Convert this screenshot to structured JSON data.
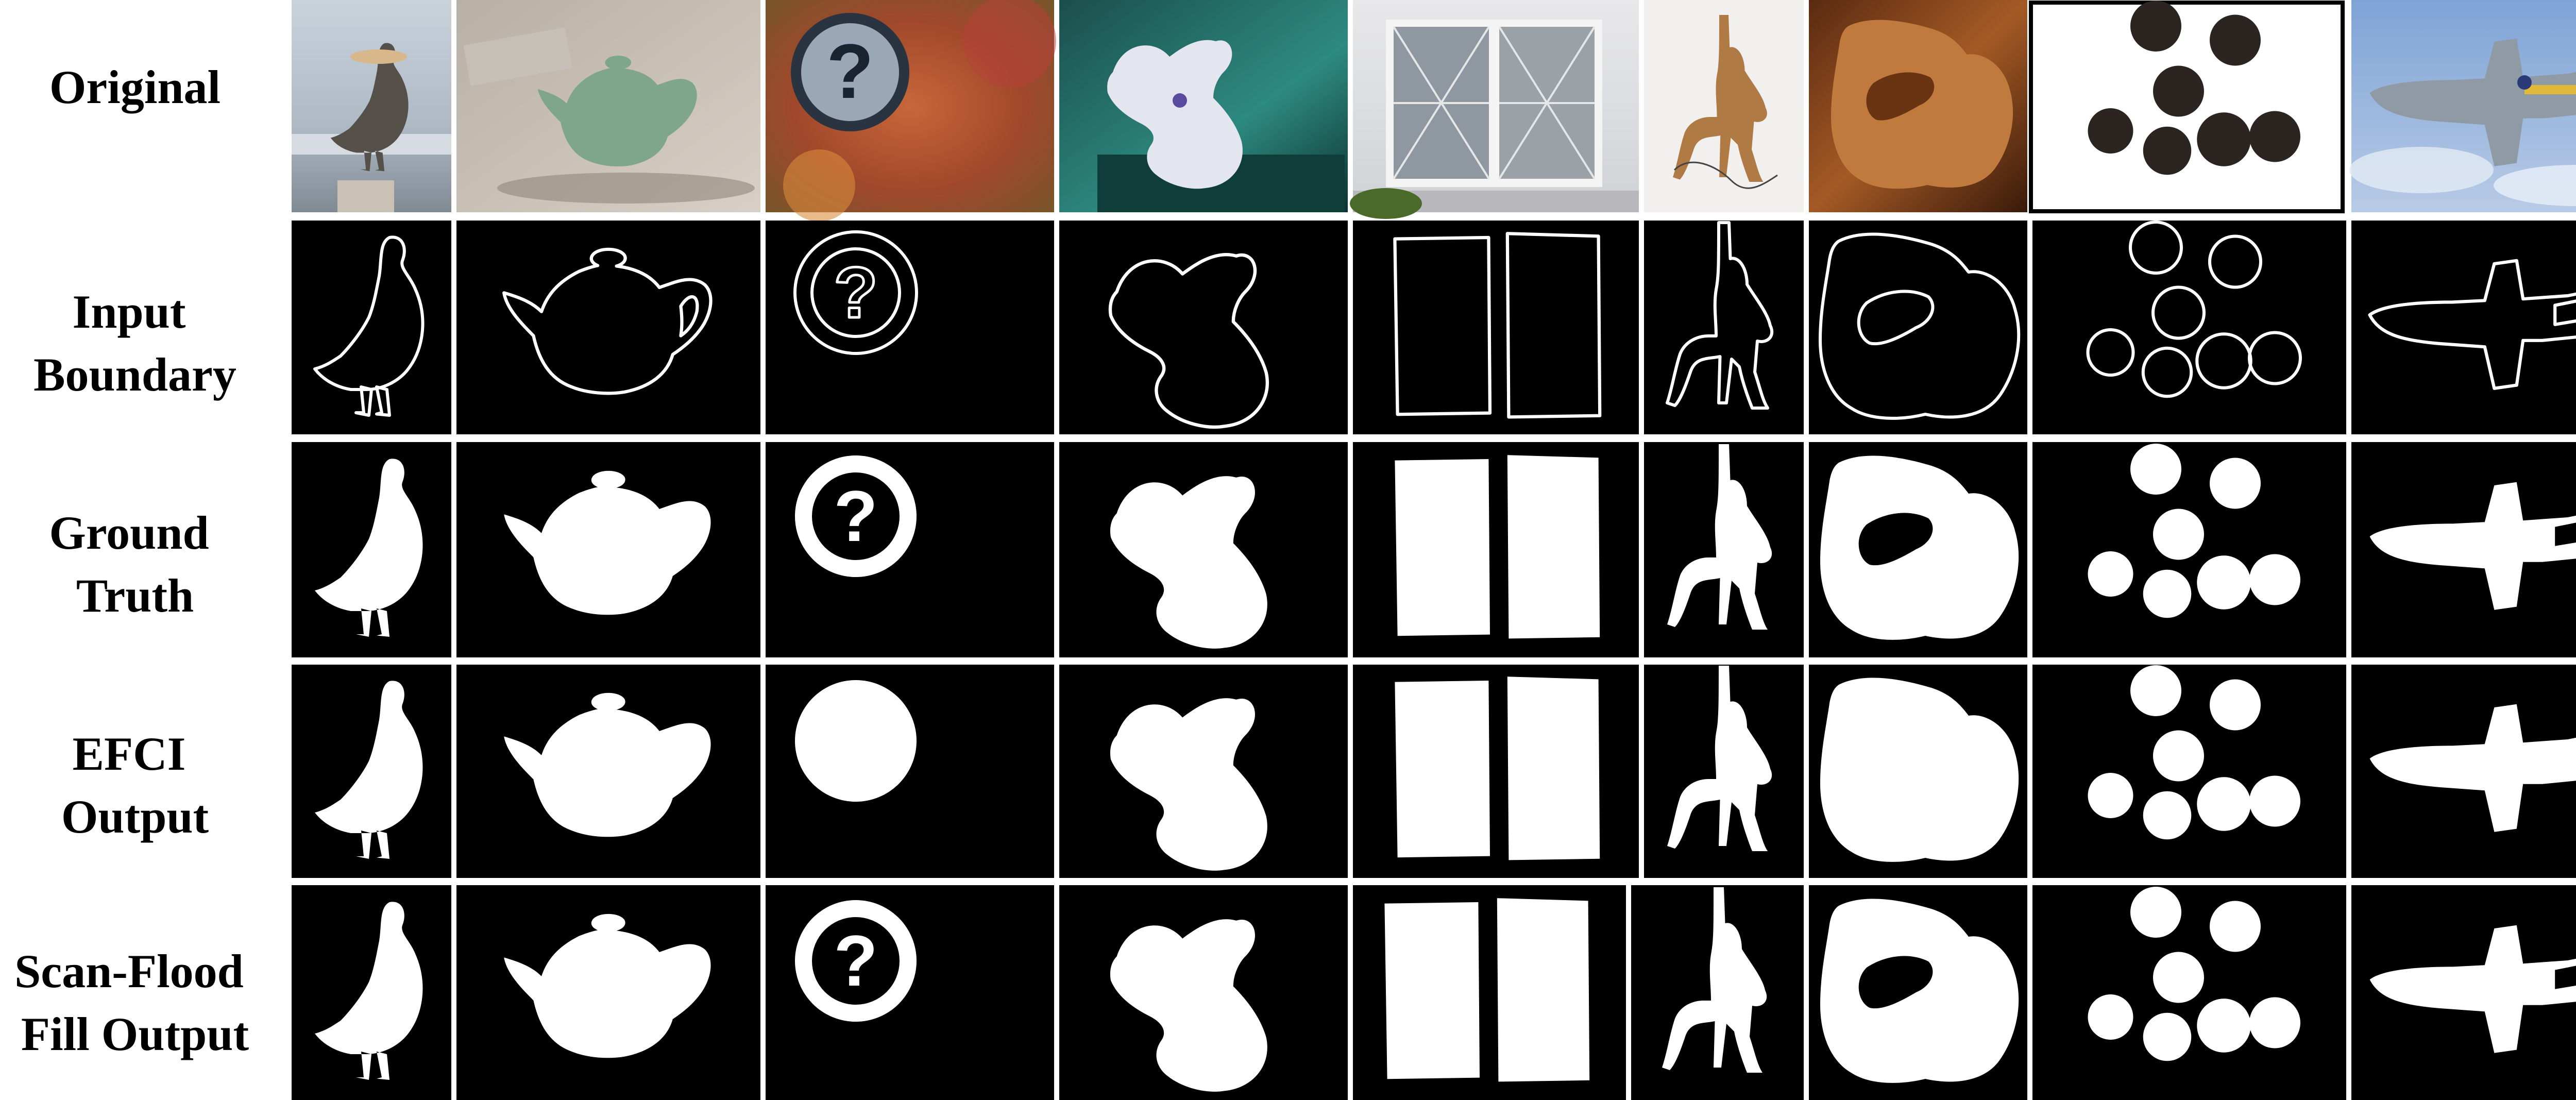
{
  "figure": {
    "row_labels": [
      [
        "Original"
      ],
      [
        "Input",
        "Boundary"
      ],
      [
        "Ground",
        "Truth"
      ],
      [
        "EFCI",
        "Output"
      ],
      [
        "Scan-Flood",
        "Fill Output"
      ]
    ],
    "columns": [
      "pelican",
      "teapot",
      "question-sign",
      "whale-toy",
      "window",
      "mannequin-drawing",
      "mannequin-closeup",
      "peppercorns",
      "jet-aircraft"
    ],
    "colors": {
      "mask_bg": "#000000",
      "mask_fg": "#ffffff",
      "page_bg": "#ffffff"
    }
  }
}
